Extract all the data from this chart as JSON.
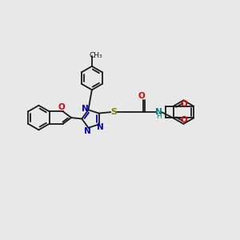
{
  "bg_color": "#e8e8e8",
  "bond_color": "#1a1a1a",
  "figsize": [
    3.0,
    3.0
  ],
  "dpi": 100,
  "xlim": [
    0,
    10
  ],
  "ylim": [
    0,
    10
  ]
}
